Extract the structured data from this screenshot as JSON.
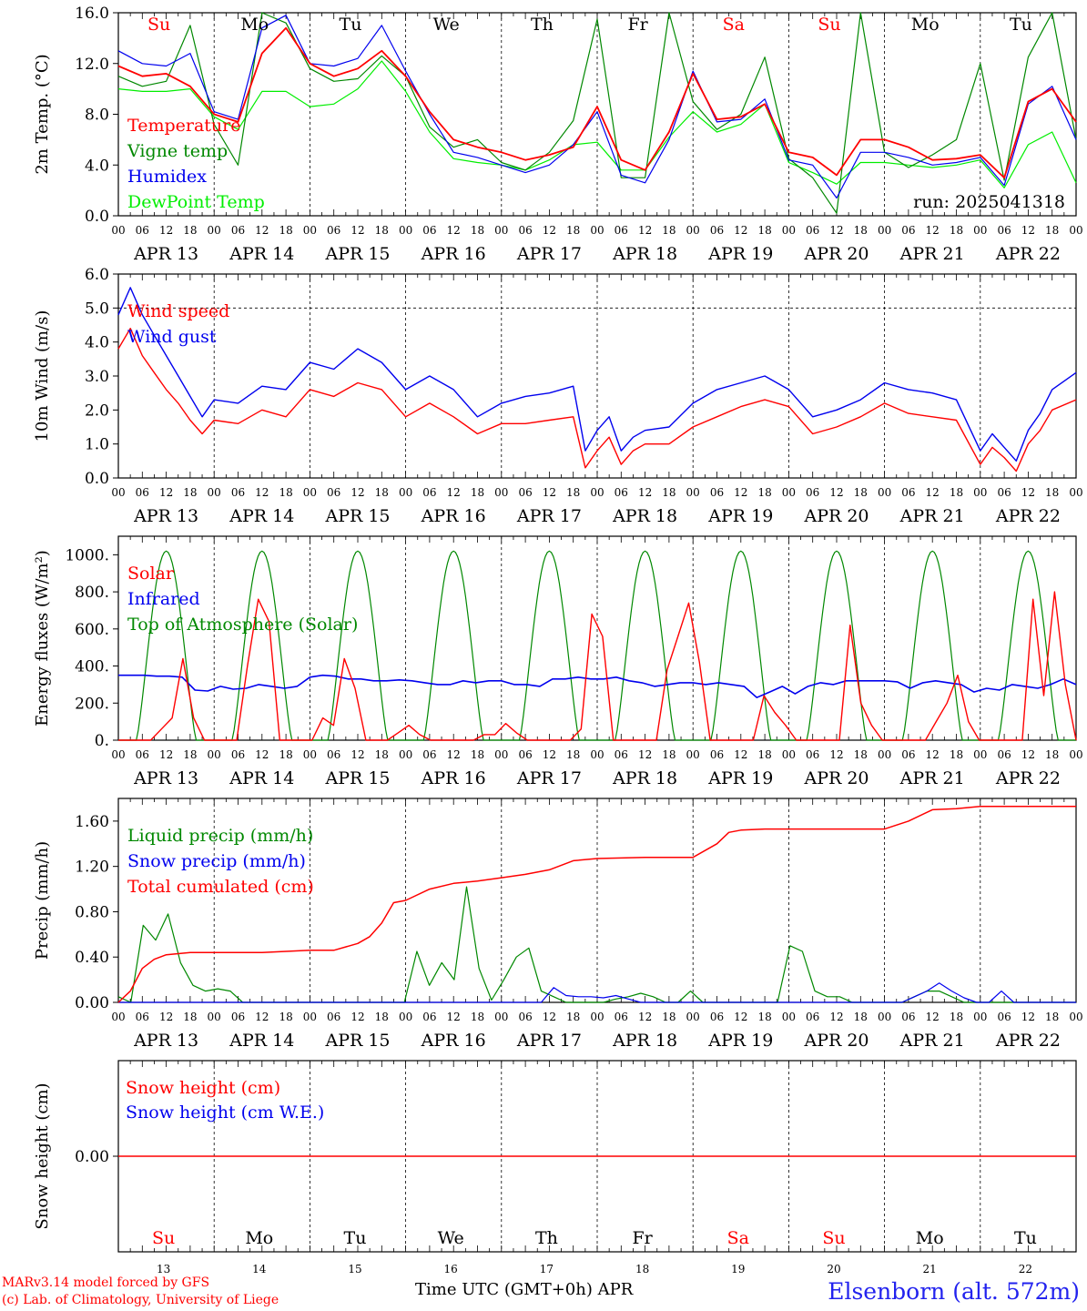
{
  "days": {
    "dates": [
      "APR 13",
      "APR 14",
      "APR 15",
      "APR 16",
      "APR 17",
      "APR 18",
      "APR 19",
      "APR 20",
      "APR 21",
      "APR 22"
    ],
    "weekdays": [
      "Su",
      "Mo",
      "Tu",
      "We",
      "Th",
      "Fr",
      "Sa",
      "Su",
      "Mo",
      "Tu"
    ],
    "weekday_colors": [
      "#ff0000",
      "#000000",
      "#000000",
      "#000000",
      "#000000",
      "#000000",
      "#ff0000",
      "#ff0000",
      "#000000",
      "#000000"
    ],
    "day_numbers": [
      "13",
      "14",
      "15",
      "16",
      "17",
      "18",
      "19",
      "20",
      "21",
      "22"
    ],
    "hour_labels": [
      "00",
      "06",
      "12",
      "18"
    ],
    "final_hour": "00"
  },
  "footer": {
    "credit_line1": "MARv3.14 model forced by GFS",
    "credit_line2": "(c) Lab. of Climatology, University of Liege",
    "axis_title": "Time UTC (GMT+0h) APR",
    "location": "Elsenborn (alt. 572m)"
  },
  "chart_data": [
    {
      "type": "line",
      "ylabel": "2m Temp. (°C)",
      "ylim": [
        0,
        16
      ],
      "yticks": [
        0,
        4,
        8,
        12,
        16
      ],
      "tick_labels": [
        "0.0",
        "4.0",
        "8.0",
        "12.0",
        "16.0"
      ],
      "annotation": "run: 2025041318",
      "x_hours": [
        0,
        6,
        12,
        18,
        24,
        30,
        36,
        42,
        48,
        54,
        60,
        66,
        72,
        78,
        84,
        90,
        96,
        102,
        108,
        114,
        120,
        126,
        132,
        138,
        144,
        150,
        156,
        162,
        168,
        174,
        180,
        186,
        192,
        198,
        204,
        210,
        216,
        222,
        228,
        234,
        240
      ],
      "series": [
        {
          "name": "Temperature",
          "color": "#ff0000",
          "values": [
            11.8,
            11.0,
            11.2,
            10.2,
            8.0,
            7.4,
            12.8,
            14.8,
            12.0,
            11.0,
            11.6,
            13.0,
            11.0,
            8.2,
            6.0,
            5.4,
            5.0,
            4.4,
            4.8,
            5.4,
            8.6,
            4.4,
            3.6,
            6.6,
            11.2,
            7.6,
            7.8,
            8.8,
            5.0,
            4.6,
            3.2,
            6.0,
            6.0,
            5.4,
            4.4,
            4.5,
            4.8,
            3.0,
            9.0,
            10.0,
            7.4
          ]
        },
        {
          "name": "Vigne temp",
          "color": "#008800",
          "values": [
            11.0,
            10.2,
            10.6,
            15.0,
            7.2,
            4.0,
            16.0,
            15.2,
            11.6,
            10.6,
            10.8,
            12.6,
            11.0,
            7.0,
            5.4,
            6.0,
            4.2,
            3.6,
            5.0,
            7.5,
            15.5,
            3.0,
            3.0,
            16.0,
            9.0,
            6.8,
            8.0,
            12.5,
            4.5,
            3.0,
            0.2,
            16.0,
            5.0,
            3.8,
            4.8,
            6.0,
            12.0,
            2.8,
            12.5,
            16.0,
            6.0
          ]
        },
        {
          "name": "Humidex",
          "color": "#0000ee",
          "values": [
            13.0,
            12.0,
            11.8,
            12.8,
            8.2,
            7.6,
            14.8,
            15.8,
            12.0,
            11.8,
            12.4,
            15.0,
            11.4,
            8.0,
            5.0,
            4.6,
            4.0,
            3.4,
            4.0,
            5.6,
            8.2,
            3.2,
            2.6,
            6.0,
            11.4,
            7.4,
            7.6,
            9.2,
            4.4,
            4.0,
            1.4,
            5.0,
            5.0,
            4.6,
            4.0,
            4.2,
            4.6,
            2.4,
            8.8,
            10.2,
            6.0
          ]
        },
        {
          "name": "DewPoint Temp",
          "color": "#00ee00",
          "values": [
            10.0,
            9.8,
            9.8,
            10.0,
            7.8,
            6.8,
            9.8,
            9.8,
            8.6,
            8.8,
            10.0,
            12.2,
            9.8,
            6.6,
            4.5,
            4.2,
            4.0,
            3.6,
            4.4,
            5.6,
            5.8,
            3.6,
            3.6,
            6.2,
            8.2,
            6.6,
            7.2,
            8.8,
            4.2,
            3.4,
            2.5,
            4.2,
            4.2,
            4.0,
            3.8,
            4.0,
            4.4,
            2.2,
            5.6,
            6.6,
            2.6
          ]
        }
      ],
      "legend_placement": "top-left"
    },
    {
      "type": "line",
      "ylabel": "10m Wind (m/s)",
      "ylim": [
        0,
        6
      ],
      "yticks": [
        0,
        1,
        2,
        3,
        4,
        5,
        6
      ],
      "tick_labels": [
        "0.0",
        "1.0",
        "2.0",
        "3.0",
        "4.0",
        "5.0",
        "6.0"
      ],
      "reference_line": 5,
      "x_hours": [
        0,
        3,
        6,
        9,
        12,
        15,
        18,
        21,
        24,
        30,
        36,
        42,
        48,
        54,
        60,
        66,
        72,
        78,
        84,
        90,
        96,
        102,
        108,
        114,
        117,
        120,
        123,
        126,
        129,
        132,
        138,
        144,
        150,
        156,
        162,
        168,
        174,
        180,
        186,
        192,
        198,
        204,
        210,
        216,
        219,
        222,
        225,
        228,
        231,
        234,
        240
      ],
      "series": [
        {
          "name": "Wind speed",
          "color": "#ff0000",
          "values": [
            3.8,
            4.4,
            3.6,
            3.1,
            2.6,
            2.2,
            1.7,
            1.3,
            1.7,
            1.6,
            2.0,
            1.8,
            2.6,
            2.4,
            2.8,
            2.6,
            1.8,
            2.2,
            1.8,
            1.3,
            1.6,
            1.6,
            1.7,
            1.8,
            0.3,
            0.8,
            1.2,
            0.4,
            0.8,
            1.0,
            1.0,
            1.5,
            1.8,
            2.1,
            2.3,
            2.1,
            1.3,
            1.5,
            1.8,
            2.2,
            1.9,
            1.8,
            1.7,
            0.4,
            0.9,
            0.6,
            0.2,
            1.0,
            1.4,
            2.0,
            2.3
          ]
        },
        {
          "name": "Wind gust",
          "color": "#0000ee",
          "values": [
            4.8,
            5.6,
            4.8,
            4.2,
            3.6,
            3.0,
            2.4,
            1.8,
            2.3,
            2.2,
            2.7,
            2.6,
            3.4,
            3.2,
            3.8,
            3.4,
            2.6,
            3.0,
            2.6,
            1.8,
            2.2,
            2.4,
            2.5,
            2.7,
            0.8,
            1.4,
            1.8,
            0.8,
            1.2,
            1.4,
            1.5,
            2.2,
            2.6,
            2.8,
            3.0,
            2.6,
            1.8,
            2.0,
            2.3,
            2.8,
            2.6,
            2.5,
            2.3,
            0.8,
            1.3,
            0.9,
            0.5,
            1.4,
            1.9,
            2.6,
            3.1
          ]
        }
      ],
      "legend_placement": "top-left"
    },
    {
      "type": "line",
      "ylabel": "Energy fluxes (W/m²)",
      "ylim": [
        0,
        1100
      ],
      "yticks": [
        0,
        200,
        400,
        600,
        800,
        1000
      ],
      "tick_labels": [
        "0.",
        "200.",
        "400.",
        "600.",
        "800.",
        "1000."
      ],
      "series": [
        {
          "name": "Solar",
          "color": "#ff0000",
          "values_note": "",
          "values": [
            0,
            0,
            0,
            0,
            60,
            120,
            440,
            120,
            0,
            0,
            0,
            0,
            400,
            760,
            640,
            0,
            0,
            0,
            0,
            120,
            80,
            440,
            280,
            0,
            0,
            0,
            40,
            80,
            30,
            0,
            0,
            0,
            0,
            0,
            30,
            30,
            90,
            40,
            0,
            0,
            0,
            0,
            0,
            60,
            680,
            560,
            0,
            0,
            0,
            0,
            0,
            380,
            560,
            740,
            420,
            0,
            0,
            0,
            0,
            0,
            240,
            150,
            80,
            0,
            0,
            0,
            0,
            0,
            620,
            200,
            80,
            0,
            0,
            0,
            0,
            0,
            100,
            200,
            350,
            100,
            0,
            0,
            0,
            0,
            0,
            760,
            240,
            800,
            300,
            0
          ]
        },
        {
          "name": "Infrared",
          "color": "#0000ee",
          "values": [
            350,
            350,
            350,
            345,
            345,
            340,
            270,
            265,
            290,
            275,
            280,
            300,
            290,
            280,
            290,
            340,
            350,
            345,
            330,
            330,
            320,
            320,
            325,
            320,
            310,
            300,
            300,
            320,
            310,
            320,
            320,
            300,
            300,
            290,
            330,
            330,
            340,
            330,
            330,
            340,
            320,
            310,
            290,
            300,
            310,
            310,
            300,
            310,
            300,
            290,
            230,
            260,
            290,
            250,
            290,
            310,
            300,
            320,
            320,
            320,
            320,
            315,
            280,
            310,
            320,
            310,
            300,
            260,
            280,
            270,
            300,
            290,
            280,
            300,
            330,
            300
          ]
        },
        {
          "name": "Top of Atmosphere (Solar)",
          "color": "#008800",
          "peak": 1020
        }
      ],
      "legend_placement": "top-left"
    },
    {
      "type": "line",
      "ylabel": "Precip (mm/h)",
      "ylim": [
        0,
        1.8
      ],
      "yticks": [
        0,
        0.4,
        0.8,
        1.2,
        1.6
      ],
      "tick_labels": [
        "0.00",
        "0.40",
        "0.80",
        "1.20",
        "1.60"
      ],
      "series": [
        {
          "name": "Liquid precip (mm/h)",
          "color": "#008800",
          "values": [
            0.05,
            0.0,
            0.68,
            0.55,
            0.78,
            0.35,
            0.15,
            0.1,
            0.12,
            0.1,
            0.0,
            0.0,
            0.0,
            0.0,
            0.0,
            0.0,
            0.0,
            0.0,
            0.0,
            0.0,
            0.0,
            0.0,
            0.0,
            0.0,
            0.45,
            0.15,
            0.35,
            0.2,
            1.02,
            0.3,
            0.02,
            0.2,
            0.4,
            0.48,
            0.1,
            0.05,
            0.0,
            0.0,
            0.0,
            0.0,
            0.03,
            0.05,
            0.08,
            0.05,
            0.0,
            0.0,
            0.1,
            0.0,
            0.0,
            0.0,
            0.0,
            0.0,
            0.0,
            0.0,
            0.5,
            0.45,
            0.1,
            0.05,
            0.05,
            0.0,
            0.0,
            0.0,
            0.0,
            0.0,
            0.05,
            0.1,
            0.1,
            0.05,
            0.0,
            0.0,
            0.0,
            0.0,
            0.0,
            0.0,
            0.0,
            0.0,
            0.0,
            0.0
          ]
        },
        {
          "name": "Snow precip (mm/h)",
          "color": "#0000ee",
          "values": [
            0.0,
            0.0,
            0.0,
            0.0,
            0.0,
            0.0,
            0.0,
            0.0,
            0.0,
            0.0,
            0.0,
            0.0,
            0.0,
            0.0,
            0.0,
            0.0,
            0.0,
            0.0,
            0.0,
            0.0,
            0.0,
            0.0,
            0.0,
            0.0,
            0.0,
            0.0,
            0.0,
            0.0,
            0.0,
            0.0,
            0.0,
            0.0,
            0.0,
            0.0,
            0.0,
            0.13,
            0.06,
            0.05,
            0.05,
            0.04,
            0.06,
            0.03,
            0.0,
            0.0,
            0.0,
            0.0,
            0.0,
            0.0,
            0.0,
            0.0,
            0.0,
            0.0,
            0.0,
            0.0,
            0.0,
            0.0,
            0.0,
            0.0,
            0.0,
            0.0,
            0.0,
            0.0,
            0.0,
            0.0,
            0.05,
            0.1,
            0.17,
            0.1,
            0.04,
            0.0,
            0.0,
            0.1,
            0.0,
            0.0,
            0.0,
            0.0,
            0.0,
            0.0
          ]
        },
        {
          "name": "Total cumulated (cm)",
          "color": "#ff0000",
          "x_hours": [
            0,
            3,
            6,
            9,
            12,
            18,
            24,
            36,
            48,
            54,
            60,
            63,
            66,
            69,
            72,
            78,
            84,
            90,
            96,
            102,
            108,
            114,
            120,
            132,
            144,
            150,
            153,
            156,
            162,
            168,
            180,
            192,
            198,
            204,
            210,
            216,
            222,
            228,
            240
          ],
          "values": [
            0.0,
            0.1,
            0.3,
            0.38,
            0.42,
            0.44,
            0.44,
            0.44,
            0.46,
            0.46,
            0.52,
            0.58,
            0.7,
            0.88,
            0.9,
            1.0,
            1.05,
            1.07,
            1.1,
            1.13,
            1.17,
            1.25,
            1.27,
            1.28,
            1.28,
            1.4,
            1.5,
            1.52,
            1.53,
            1.53,
            1.53,
            1.53,
            1.6,
            1.7,
            1.71,
            1.73,
            1.73,
            1.73,
            1.73
          ]
        }
      ],
      "legend_placement": "top-left"
    },
    {
      "type": "line",
      "ylabel": "Snow height (cm)",
      "yticks": [
        0
      ],
      "tick_labels": [
        "0.00"
      ],
      "series": [
        {
          "name": "Snow height (cm)",
          "color": "#ff0000",
          "values": [
            0,
            0
          ]
        },
        {
          "name": "Snow height (cm W.E.)",
          "color": "#0000ee",
          "values": [
            0,
            0
          ]
        }
      ],
      "legend_placement": "top-left"
    }
  ]
}
